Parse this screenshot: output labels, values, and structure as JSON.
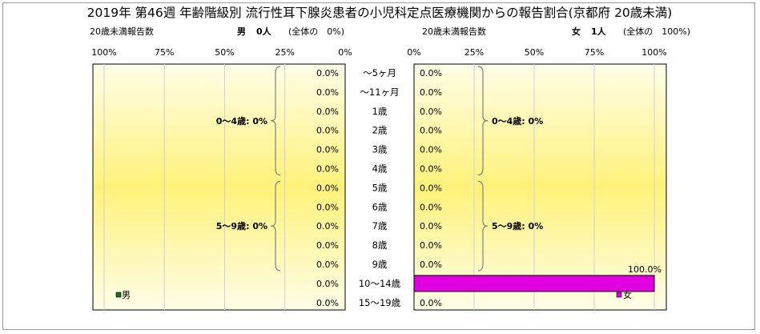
{
  "title": "2019年 第46週 年齢階級別 流行性耳下腺炎患者の小児科定点医療機関からの報告割合(京都府 20歳未満)",
  "male_header": {
    "label": "20歳未満報告数",
    "sex": "男",
    "count": "0人",
    "share": "(全体の　0%)"
  },
  "female_header": {
    "label": "20歳未満報告数",
    "sex": "女",
    "count": "1人",
    "share": "(全体の　100%)"
  },
  "colors": {
    "male": "#1e6b1e",
    "female": "#e000e0",
    "plot_bg_edge": "#fffde8",
    "plot_bg_center": "#fff27a",
    "grid": "#d0d0d0",
    "bracket": "#808080"
  },
  "chart_data": [
    {
      "type": "bar",
      "orientation": "horizontal",
      "direction": "right-to-left",
      "categories": [
        "〜5ヶ月",
        "〜11ヶ月",
        "1歳",
        "2歳",
        "3歳",
        "4歳",
        "5歳",
        "6歳",
        "7歳",
        "8歳",
        "9歳",
        "10〜14歳",
        "15〜19歳"
      ],
      "series": [
        {
          "name": "男",
          "values": [
            0,
            0,
            0,
            0,
            0,
            0,
            0,
            0,
            0,
            0,
            0,
            0,
            0
          ]
        }
      ],
      "value_labels": [
        "0.0%",
        "0.0%",
        "0.0%",
        "0.0%",
        "0.0%",
        "0.0%",
        "0.0%",
        "0.0%",
        "0.0%",
        "0.0%",
        "0.0%",
        "0.0%",
        "0.0%"
      ],
      "xticks": [
        "100%",
        "75%",
        "50%",
        "25%",
        "0%"
      ],
      "xlim": [
        0,
        100
      ],
      "groups": [
        {
          "label": "0〜4歳: 0%",
          "from": 0,
          "to": 5
        },
        {
          "label": "5〜9歳: 0%",
          "from": 6,
          "to": 10
        }
      ],
      "legend": "男",
      "legend_position": "bottom-left",
      "grid": true
    },
    {
      "type": "bar",
      "orientation": "horizontal",
      "direction": "left-to-right",
      "categories": [
        "〜5ヶ月",
        "〜11ヶ月",
        "1歳",
        "2歳",
        "3歳",
        "4歳",
        "5歳",
        "6歳",
        "7歳",
        "8歳",
        "9歳",
        "10〜14歳",
        "15〜19歳"
      ],
      "series": [
        {
          "name": "女",
          "values": [
            0,
            0,
            0,
            0,
            0,
            0,
            0,
            0,
            0,
            0,
            0,
            100,
            0
          ]
        }
      ],
      "value_labels": [
        "0.0%",
        "0.0%",
        "0.0%",
        "0.0%",
        "0.0%",
        "0.0%",
        "0.0%",
        "0.0%",
        "0.0%",
        "0.0%",
        "0.0%",
        "100.0%",
        "0.0%"
      ],
      "xticks": [
        "0%",
        "25%",
        "50%",
        "75%",
        "100%"
      ],
      "xlim": [
        0,
        100
      ],
      "groups": [
        {
          "label": "0〜4歳: 0%",
          "from": 0,
          "to": 5
        },
        {
          "label": "5〜9歳: 0%",
          "from": 6,
          "to": 10
        }
      ],
      "legend": "女",
      "legend_position": "bottom-right",
      "grid": true
    }
  ]
}
